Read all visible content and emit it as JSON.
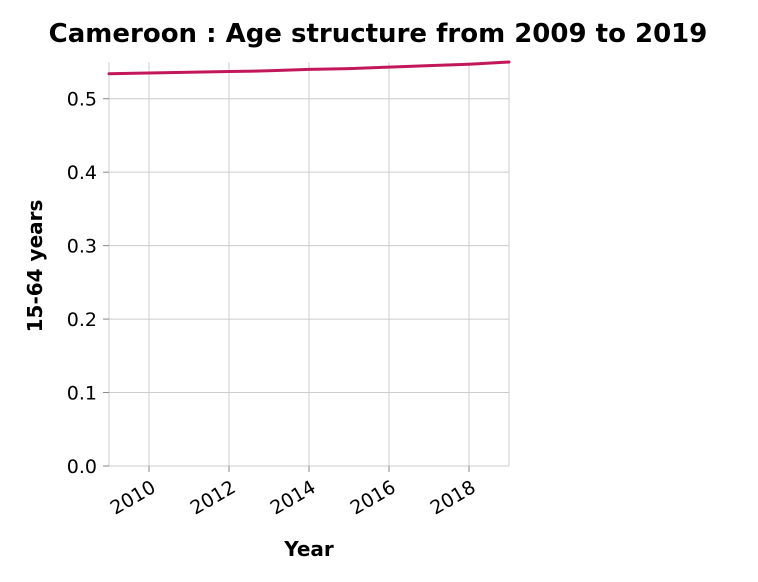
{
  "chart_data": {
    "type": "line",
    "title": "Cameroon : Age structure from 2009 to 2019",
    "xlabel": "Year",
    "ylabel": "15-64 years",
    "x": [
      2009,
      2010,
      2011,
      2012,
      2013,
      2014,
      2015,
      2016,
      2017,
      2018,
      2019
    ],
    "series": [
      {
        "values": [
          0.534,
          0.535,
          0.536,
          0.537,
          0.538,
          0.54,
          0.541,
          0.543,
          0.545,
          0.547,
          0.55
        ],
        "color": "#c2185b"
      }
    ],
    "xlim": [
      2009,
      2019
    ],
    "ylim": [
      0,
      0.55
    ],
    "x_ticks": [
      2010,
      2012,
      2014,
      2016,
      2018
    ],
    "y_ticks": [
      0.0,
      0.1,
      0.2,
      0.3,
      0.4,
      0.5
    ],
    "x_tick_labels": [
      "2010",
      "2012",
      "2014",
      "2016",
      "2018"
    ],
    "y_tick_labels": [
      "0.0",
      "0.1",
      "0.2",
      "0.3",
      "0.4",
      "0.5"
    ],
    "grid": true,
    "legend": "none"
  }
}
